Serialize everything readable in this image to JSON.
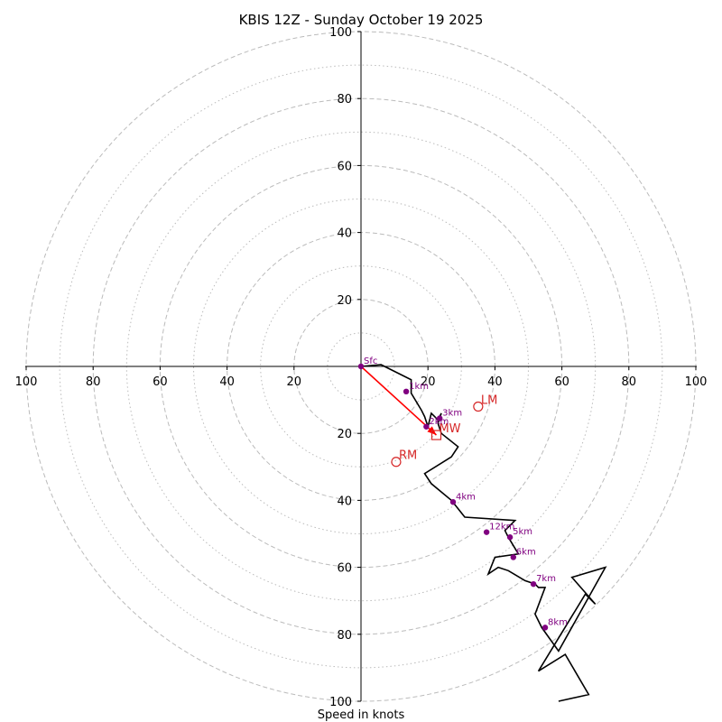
{
  "chart_data": {
    "type": "hodograph",
    "title": "KBIS 12Z - Sunday October 19 2025",
    "xlabel": "Speed in knots",
    "units": "knots",
    "range": [
      -100,
      100
    ],
    "rings_major": [
      20,
      40,
      60,
      80,
      100
    ],
    "rings_minor": [
      10,
      30,
      50,
      70,
      90
    ],
    "axis_ticks": {
      "x": [
        {
          "value": -100,
          "label": "100"
        },
        {
          "value": -80,
          "label": "80"
        },
        {
          "value": -60,
          "label": "60"
        },
        {
          "value": -40,
          "label": "40"
        },
        {
          "value": -20,
          "label": "20"
        },
        {
          "value": 20,
          "label": "20"
        },
        {
          "value": 40,
          "label": "40"
        },
        {
          "value": 60,
          "label": "60"
        },
        {
          "value": 80,
          "label": "80"
        },
        {
          "value": 100,
          "label": "100"
        }
      ],
      "y": [
        {
          "value": 100,
          "label": "100"
        },
        {
          "value": 80,
          "label": "80"
        },
        {
          "value": 60,
          "label": "60"
        },
        {
          "value": 40,
          "label": "40"
        },
        {
          "value": 20,
          "label": "20"
        },
        {
          "value": -20,
          "label": "20"
        },
        {
          "value": -40,
          "label": "40"
        },
        {
          "value": -60,
          "label": "60"
        },
        {
          "value": -80,
          "label": "80"
        },
        {
          "value": -100,
          "label": "100"
        }
      ]
    },
    "trace": {
      "color": "#000000",
      "points": [
        [
          0,
          0
        ],
        [
          6,
          0.5
        ],
        [
          15,
          -4
        ],
        [
          15,
          -8
        ],
        [
          18,
          -13
        ],
        [
          19,
          -15
        ],
        [
          20,
          -18
        ],
        [
          21,
          -14
        ],
        [
          22,
          -15
        ],
        [
          23,
          -16
        ],
        [
          24,
          -14
        ],
        [
          23,
          -17
        ],
        [
          24,
          -20
        ],
        [
          29,
          -24
        ],
        [
          27,
          -27
        ],
        [
          19,
          -32
        ],
        [
          21,
          -35
        ],
        [
          27,
          -40
        ],
        [
          31,
          -45
        ],
        [
          46,
          -46
        ],
        [
          43,
          -49
        ],
        [
          44,
          -51
        ],
        [
          47,
          -56
        ],
        [
          40,
          -57
        ],
        [
          38,
          -62
        ],
        [
          41,
          -60
        ],
        [
          44,
          -61
        ],
        [
          49,
          -64
        ],
        [
          52,
          -65
        ],
        [
          53,
          -66
        ],
        [
          55,
          -66
        ],
        [
          52,
          -74
        ],
        [
          54,
          -78
        ],
        [
          59,
          -85
        ],
        [
          73,
          -60
        ],
        [
          63,
          -63
        ],
        [
          70,
          -71
        ],
        [
          67,
          -68
        ],
        [
          53,
          -91
        ],
        [
          61,
          -86
        ],
        [
          68,
          -98
        ],
        [
          59,
          -100
        ]
      ]
    },
    "height_markers": [
      {
        "label": "Sfc",
        "u": 0,
        "v": 0
      },
      {
        "label": "1km",
        "u": 13.5,
        "v": -7.5
      },
      {
        "label": "2km",
        "u": 19.5,
        "v": -18
      },
      {
        "label": "3km",
        "u": 23.5,
        "v": -15.5
      },
      {
        "label": "4km",
        "u": 27.5,
        "v": -40.5
      },
      {
        "label": "5km",
        "u": 44.5,
        "v": -51
      },
      {
        "label": "6km",
        "u": 45.5,
        "v": -57
      },
      {
        "label": "7km",
        "u": 51.5,
        "v": -65
      },
      {
        "label": "8km",
        "u": 55,
        "v": -78
      },
      {
        "label": "12km",
        "u": 37.5,
        "v": -49.5
      }
    ],
    "storm_motion": [
      {
        "label": "LM",
        "u": 35,
        "v": -12,
        "marker": "circle"
      },
      {
        "label": "MW",
        "u": 22.5,
        "v": -20.5,
        "marker": "square"
      },
      {
        "label": "RM",
        "u": 10.5,
        "v": -28.5,
        "marker": "circle"
      }
    ],
    "shear_vector": {
      "from": [
        0,
        0
      ],
      "to": [
        22.5,
        -20.5
      ],
      "color": "#ff0000"
    },
    "colors": {
      "ring": "#bbbbbb",
      "axis": "#000000",
      "trace": "#000000",
      "marker": "#800080",
      "storm": "#d62728",
      "shear": "#ff0000"
    }
  }
}
